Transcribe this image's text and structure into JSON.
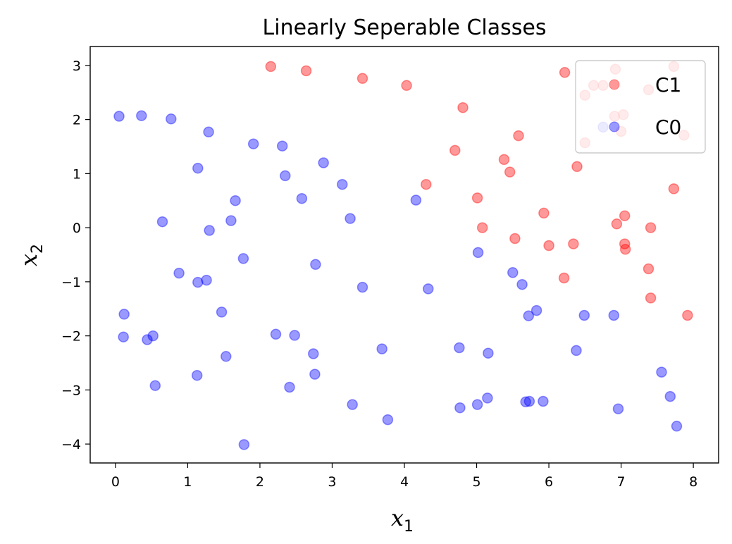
{
  "chart_data": {
    "type": "scatter",
    "title": "Linearly Seperable Classes",
    "xlabel": "x",
    "xlabel_sub": "1",
    "ylabel": "x",
    "ylabel_sub": "2",
    "xlim": [
      -0.35,
      8.35
    ],
    "ylim": [
      -4.35,
      3.35
    ],
    "xticks": [
      0,
      1,
      2,
      3,
      4,
      5,
      6,
      7,
      8
    ],
    "yticks": [
      -4,
      -3,
      -2,
      -1,
      0,
      1,
      2,
      3
    ],
    "xtick_labels": [
      "0",
      "1",
      "2",
      "3",
      "4",
      "5",
      "6",
      "7",
      "8"
    ],
    "ytick_labels": [
      "−4",
      "−3",
      "−2",
      "−1",
      "0",
      "1",
      "2",
      "3"
    ],
    "grid": false,
    "legend_position": "top-right",
    "series": [
      {
        "name": "C1",
        "color": "#ff0000",
        "points": [
          [
            2.15,
            2.98
          ],
          [
            2.64,
            2.9
          ],
          [
            3.42,
            2.76
          ],
          [
            4.03,
            2.63
          ],
          [
            4.81,
            2.22
          ],
          [
            4.7,
            1.43
          ],
          [
            5.58,
            1.7
          ],
          [
            5.38,
            1.26
          ],
          [
            5.46,
            1.03
          ],
          [
            4.3,
            0.8
          ],
          [
            6.22,
            2.87
          ],
          [
            6.62,
            2.63
          ],
          [
            6.75,
            2.63
          ],
          [
            6.92,
            2.93
          ],
          [
            7.38,
            2.55
          ],
          [
            7.73,
            2.98
          ],
          [
            6.91,
            2.06
          ],
          [
            7.03,
            2.09
          ],
          [
            7.0,
            1.78
          ],
          [
            6.5,
            2.45
          ],
          [
            6.5,
            1.57
          ],
          [
            6.39,
            1.13
          ],
          [
            7.87,
            1.71
          ],
          [
            7.73,
            0.72
          ],
          [
            5.01,
            0.55
          ],
          [
            5.93,
            0.27
          ],
          [
            5.08,
            0.0
          ],
          [
            6.94,
            0.07
          ],
          [
            7.05,
            0.22
          ],
          [
            7.41,
            0.0
          ],
          [
            5.53,
            -0.2
          ],
          [
            6.0,
            -0.33
          ],
          [
            6.34,
            -0.3
          ],
          [
            7.05,
            -0.3
          ],
          [
            7.06,
            -0.4
          ],
          [
            7.38,
            -0.76
          ],
          [
            6.21,
            -0.93
          ],
          [
            7.41,
            -1.3
          ],
          [
            7.92,
            -1.62
          ]
        ]
      },
      {
        "name": "C0",
        "color": "#0000ff",
        "points": [
          [
            0.05,
            2.06
          ],
          [
            0.36,
            2.07
          ],
          [
            0.77,
            2.01
          ],
          [
            1.29,
            1.77
          ],
          [
            1.91,
            1.55
          ],
          [
            2.31,
            1.51
          ],
          [
            1.14,
            1.1
          ],
          [
            2.88,
            1.2
          ],
          [
            2.35,
            0.96
          ],
          [
            3.14,
            0.8
          ],
          [
            2.58,
            0.54
          ],
          [
            1.66,
            0.5
          ],
          [
            4.16,
            0.51
          ],
          [
            3.25,
            0.17
          ],
          [
            0.65,
            0.11
          ],
          [
            1.6,
            0.13
          ],
          [
            1.3,
            -0.05
          ],
          [
            5.02,
            -0.46
          ],
          [
            1.77,
            -0.57
          ],
          [
            2.77,
            -0.68
          ],
          [
            0.88,
            -0.84
          ],
          [
            5.5,
            -0.83
          ],
          [
            1.14,
            -1.01
          ],
          [
            1.26,
            -0.97
          ],
          [
            5.63,
            -1.05
          ],
          [
            3.42,
            -1.1
          ],
          [
            4.33,
            -1.13
          ],
          [
            5.83,
            -1.53
          ],
          [
            1.47,
            -1.56
          ],
          [
            5.72,
            -1.63
          ],
          [
            6.49,
            -1.62
          ],
          [
            6.9,
            -1.62
          ],
          [
            0.12,
            -1.6
          ],
          [
            0.11,
            -2.02
          ],
          [
            0.52,
            -2.0
          ],
          [
            0.44,
            -2.07
          ],
          [
            2.22,
            -1.97
          ],
          [
            2.48,
            -1.99
          ],
          [
            4.76,
            -2.22
          ],
          [
            3.69,
            -2.24
          ],
          [
            5.16,
            -2.32
          ],
          [
            6.38,
            -2.27
          ],
          [
            2.74,
            -2.33
          ],
          [
            1.53,
            -2.38
          ],
          [
            2.76,
            -2.71
          ],
          [
            1.13,
            -2.73
          ],
          [
            7.56,
            -2.67
          ],
          [
            0.55,
            -2.92
          ],
          [
            2.41,
            -2.95
          ],
          [
            7.68,
            -3.12
          ],
          [
            5.15,
            -3.15
          ],
          [
            5.73,
            -3.21
          ],
          [
            5.92,
            -3.21
          ],
          [
            5.68,
            -3.22
          ],
          [
            3.28,
            -3.27
          ],
          [
            5.01,
            -3.27
          ],
          [
            4.77,
            -3.33
          ],
          [
            6.96,
            -3.35
          ],
          [
            3.77,
            -3.55
          ],
          [
            7.77,
            -3.67
          ],
          [
            1.78,
            -4.01
          ],
          [
            6.75,
            1.86
          ]
        ]
      }
    ]
  }
}
